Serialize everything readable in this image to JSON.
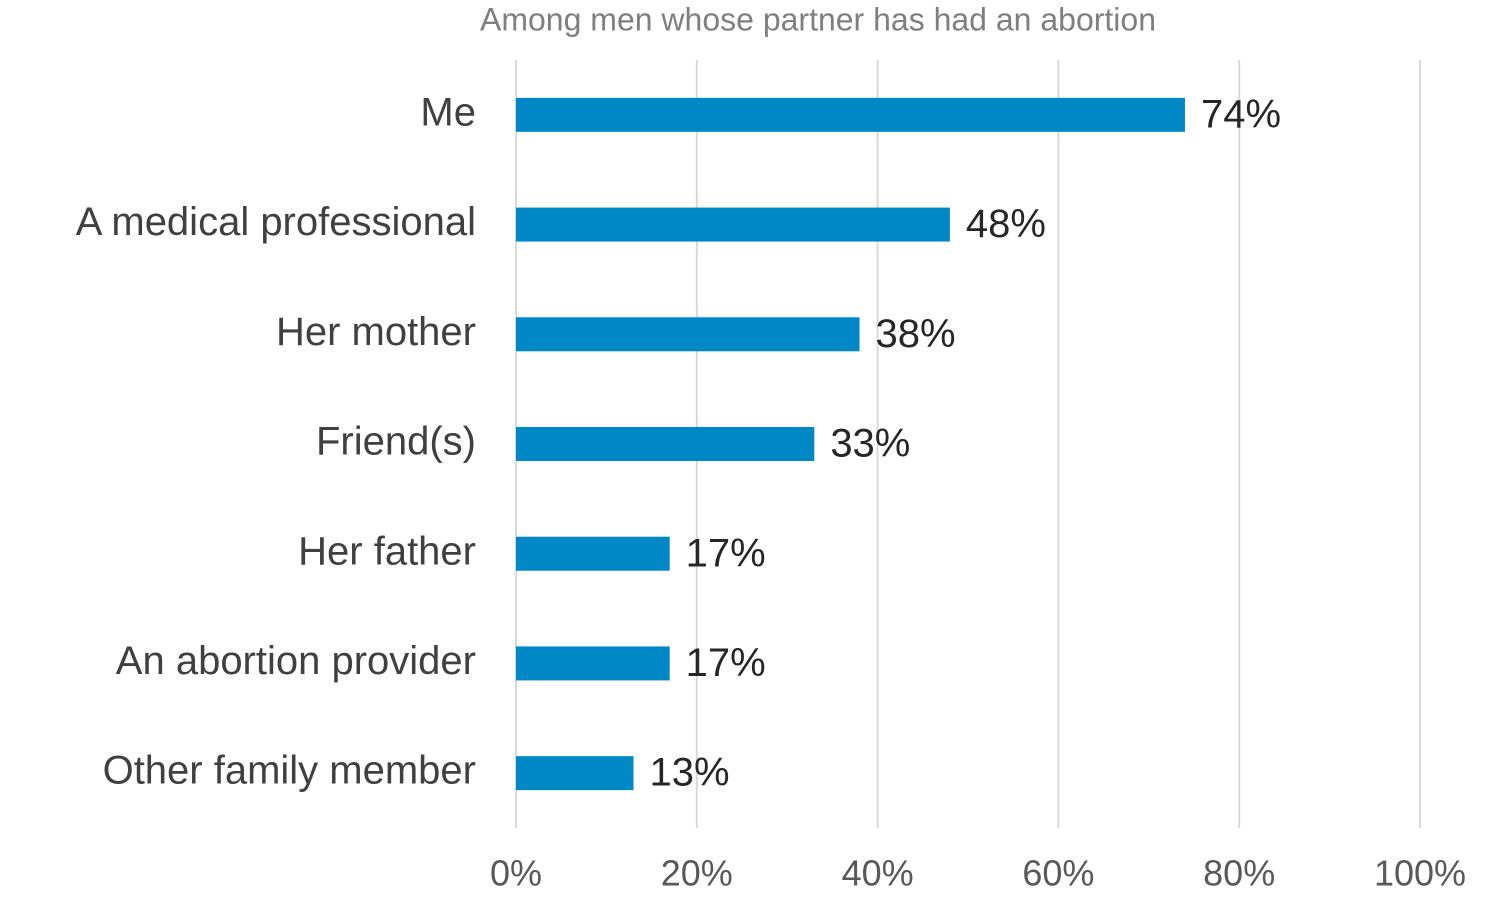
{
  "chart_data": {
    "type": "bar",
    "orientation": "horizontal",
    "title": "Among men whose partner has had an abortion",
    "categories": [
      "Me",
      "A medical professional",
      "Her mother",
      "Friend(s)",
      "Her father",
      "An abortion provider",
      "Other family member"
    ],
    "values": [
      74,
      48,
      38,
      33,
      17,
      17,
      13
    ],
    "value_labels": [
      "74%",
      "48%",
      "38%",
      "33%",
      "17%",
      "17%",
      "13%"
    ],
    "color": "#0088c6",
    "xlim": [
      0,
      100
    ],
    "xticks": [
      {
        "value": 0,
        "label": "0%"
      },
      {
        "value": 20,
        "label": "20%"
      },
      {
        "value": 40,
        "label": "40%"
      },
      {
        "value": 60,
        "label": "60%"
      },
      {
        "value": 80,
        "label": "80%"
      },
      {
        "value": 100,
        "label": "100%"
      }
    ],
    "grid": true
  }
}
